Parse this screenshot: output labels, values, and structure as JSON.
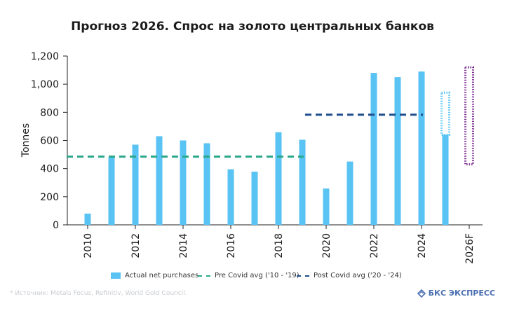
{
  "header": {
    "title": "Прогноз 2026. Спрос на золото центральных банков"
  },
  "footer": {
    "source": "* Источник: Metals Focus, Refinitiv, World Gold Council.",
    "brand": "БКС ЭКСПРЕСС"
  },
  "chart_data": {
    "type": "bar",
    "ylabel": "Tonnes",
    "ylim": [
      0,
      1200
    ],
    "yticks": [
      0,
      200,
      400,
      600,
      800,
      1000,
      1200
    ],
    "ytick_labels": [
      "0",
      "200",
      "400",
      "600",
      "800",
      "1,000",
      "1,200"
    ],
    "categories": [
      "2010",
      "2011",
      "2012",
      "2013",
      "2014",
      "2015",
      "2016",
      "2017",
      "2018",
      "2019",
      "2020",
      "2021",
      "2022",
      "2023",
      "2024",
      "2025",
      "2026F"
    ],
    "xtick_labels": [
      "2010",
      "",
      "2012",
      "",
      "2014",
      "",
      "2016",
      "",
      "2018",
      "",
      "2020",
      "",
      "2022",
      "",
      "2024",
      "",
      "2026F"
    ],
    "series": [
      {
        "name": "Actual net purchases",
        "color": "#59c3f4",
        "values": [
          80,
          480,
          570,
          630,
          600,
          580,
          395,
          378,
          658,
          605,
          258,
          450,
          1080,
          1050,
          1090,
          640,
          null
        ]
      }
    ],
    "range_boxes": [
      {
        "category": "2025",
        "low": 640,
        "high": 940,
        "color": "#59c3f4",
        "style": "dotted"
      },
      {
        "category": "2026F",
        "low": 430,
        "high": 1120,
        "color": "#7a2a90",
        "style": "dotted"
      }
    ],
    "reference_lines": [
      {
        "name": "Pre Covid avg ('10 - '19)",
        "value": 485,
        "from": "2010",
        "to": "2019",
        "color": "#2aa88a",
        "style": "dashed"
      },
      {
        "name": "Post Covid avg ('20 - '24)",
        "value": 783,
        "from": "2020",
        "to": "2024",
        "color": "#1f4e8c",
        "style": "dashed"
      }
    ],
    "legend_position": "bottom",
    "grid": false
  }
}
